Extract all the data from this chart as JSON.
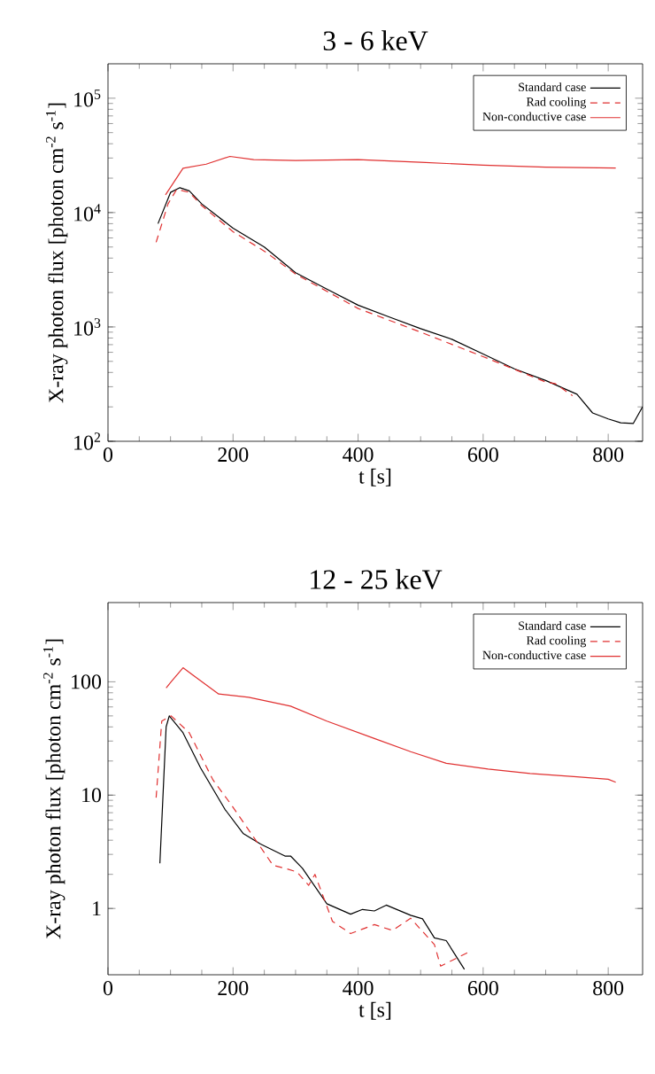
{
  "chart_data": [
    {
      "type": "line",
      "title": "3 - 6 keV",
      "xlabel": "t  [s]",
      "ylabel": "X-ray photon flux  [photon cm$^{-2}$ s$^{-1}$]",
      "log": "y",
      "legend": "top right",
      "xlim": [
        0,
        855
      ],
      "ylim": [
        100,
        200000
      ],
      "xticks": [
        0,
        200,
        400,
        600,
        800
      ],
      "yticks": [
        {
          "value": 100,
          "label": "10$^{2}$"
        },
        {
          "value": 1000,
          "label": "10$^{3}$"
        },
        {
          "value": 10000,
          "label": "10$^{4}$"
        },
        {
          "value": 100000,
          "label": "10$^{5}$"
        }
      ],
      "series": [
        {
          "name": "Standard case",
          "color": "#000000",
          "line_style": "solid",
          "x": [
            80,
            100,
            115,
            130,
            150,
            200,
            250,
            300,
            350,
            400,
            450,
            500,
            550,
            600,
            650,
            700,
            750,
            775,
            800,
            820,
            840,
            855
          ],
          "values": [
            8000,
            15000,
            16500,
            15500,
            11900,
            7300,
            5000,
            2980,
            2140,
            1550,
            1220,
            965,
            780,
            580,
            430,
            340,
            258,
            177,
            157,
            145,
            143,
            200
          ]
        },
        {
          "name": "Rad cooling",
          "color": "#e03030",
          "line_style": "dashed",
          "x": [
            77,
            96,
            110,
            130,
            150,
            200,
            250,
            300,
            400,
            500,
            600,
            700,
            715,
            743
          ],
          "values": [
            5500,
            11900,
            16000,
            15000,
            11500,
            6800,
            4600,
            2900,
            1450,
            900,
            550,
            330,
            320,
            250
          ]
        },
        {
          "name": "Non-conductive case",
          "color": "#e03030",
          "line_style": "solid",
          "x": [
            92,
            120,
            157,
            195,
            233,
            300,
            400,
            500,
            600,
            700,
            812
          ],
          "values": [
            14300,
            24400,
            26500,
            31000,
            29000,
            28500,
            29000,
            27500,
            26000,
            25000,
            24500
          ]
        }
      ]
    },
    {
      "type": "line",
      "title": "12 - 25 keV",
      "xlabel": "t  [s]",
      "ylabel": "X-ray photon flux  [photon cm$^{-2}$ s$^{-1}$]",
      "log": "y",
      "legend": "top right",
      "xlim": [
        0,
        855
      ],
      "ylim": [
        0.26,
        500
      ],
      "xticks": [
        0,
        200,
        400,
        600,
        800
      ],
      "yticks": [
        1,
        10,
        100
      ],
      "series": [
        {
          "name": "Standard case",
          "color": "#000000",
          "line_style": "solid",
          "x": [
            83,
            93,
            98,
            120,
            148,
            187,
            216,
            244,
            283,
            292,
            311,
            350,
            388,
            407,
            426,
            445,
            484,
            503,
            522,
            541,
            570
          ],
          "values": [
            2.5,
            40,
            50,
            35.5,
            17.4,
            7.5,
            4.6,
            3.7,
            2.9,
            2.9,
            2.26,
            1.1,
            0.89,
            0.98,
            0.95,
            1.07,
            0.87,
            0.81,
            0.55,
            0.52,
            0.29
          ]
        },
        {
          "name": "Rad cooling",
          "color": "#e03030",
          "line_style": "dashed",
          "x": [
            77,
            86,
            101,
            130,
            168,
            196,
            235,
            264,
            283,
            302,
            321,
            331,
            359,
            388,
            426,
            455,
            484,
            522,
            532,
            560,
            580
          ],
          "values": [
            9.5,
            45,
            50,
            35.5,
            13.6,
            8.4,
            4.1,
            2.4,
            2.26,
            2.1,
            1.6,
            2.0,
            0.77,
            0.6,
            0.72,
            0.64,
            0.82,
            0.48,
            0.31,
            0.37,
            0.42
          ]
        },
        {
          "name": "Non-conductive case",
          "color": "#e03030",
          "line_style": "solid",
          "x": [
            93,
            101,
            120,
            139,
            177,
            225,
            292,
            350,
            426,
            484,
            541,
            608,
            675,
            750,
            800,
            812
          ],
          "values": [
            88,
            100,
            133,
            111,
            78,
            73,
            61,
            45,
            31.6,
            24.2,
            19.1,
            17,
            15.5,
            14.5,
            13.8,
            13
          ]
        }
      ]
    }
  ]
}
